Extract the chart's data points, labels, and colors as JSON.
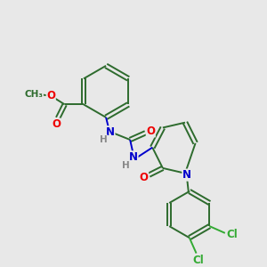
{
  "background_color": "#e8e8e8",
  "bond_color": "#2d6b2d",
  "atom_colors": {
    "O": "#ee0000",
    "N": "#0000cc",
    "Cl": "#33aa33",
    "C": "#2d6b2d",
    "H": "#888888"
  },
  "figsize": [
    3.0,
    3.0
  ],
  "dpi": 100,
  "lw": 1.4,
  "fs": 8.5
}
